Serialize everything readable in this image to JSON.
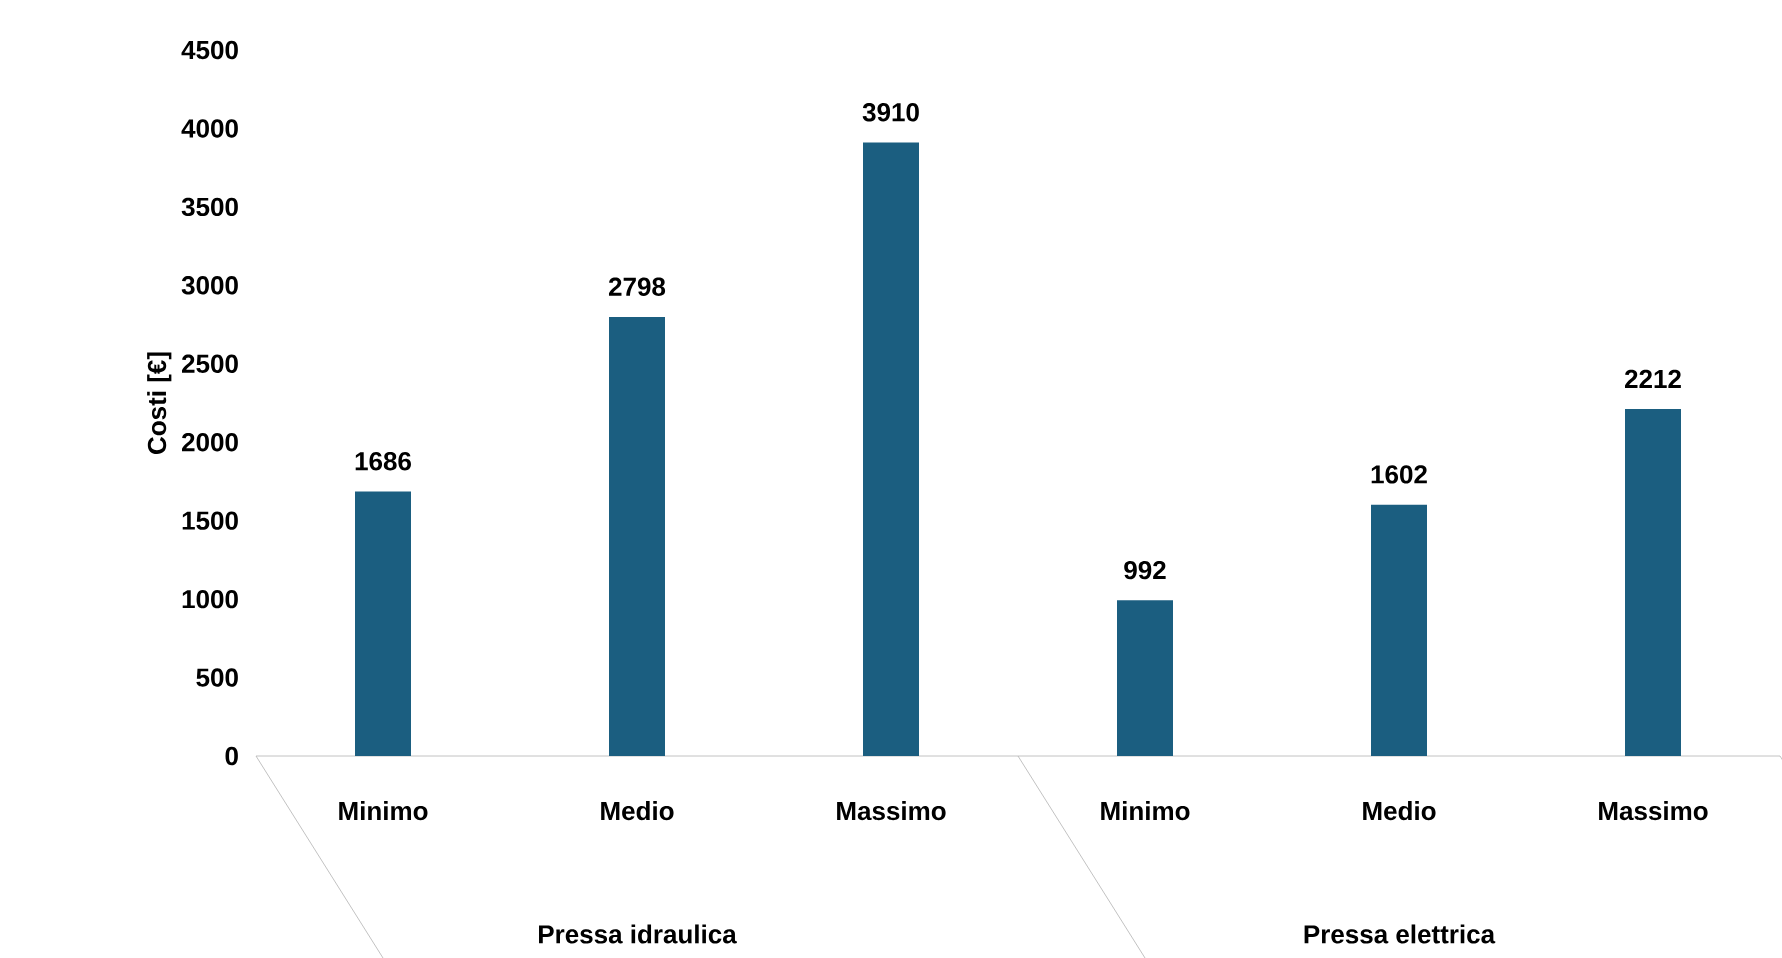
{
  "chart_data": {
    "type": "bar",
    "ylabel": "Costi [€]",
    "categories": [
      "Minimo",
      "Medio",
      "Massimo",
      "Minimo",
      "Medio",
      "Massimo"
    ],
    "values": [
      1686,
      2798,
      3910,
      992,
      1602,
      2212
    ],
    "color": "#1b5e80",
    "ylim": [
      0,
      4500
    ],
    "yticks": [
      0,
      500,
      1000,
      1500,
      2000,
      2500,
      3000,
      3500,
      4000,
      4500
    ],
    "data_labels": true,
    "annotations": [
      "Pressa idraulica",
      "Pressa elettrica"
    ]
  }
}
